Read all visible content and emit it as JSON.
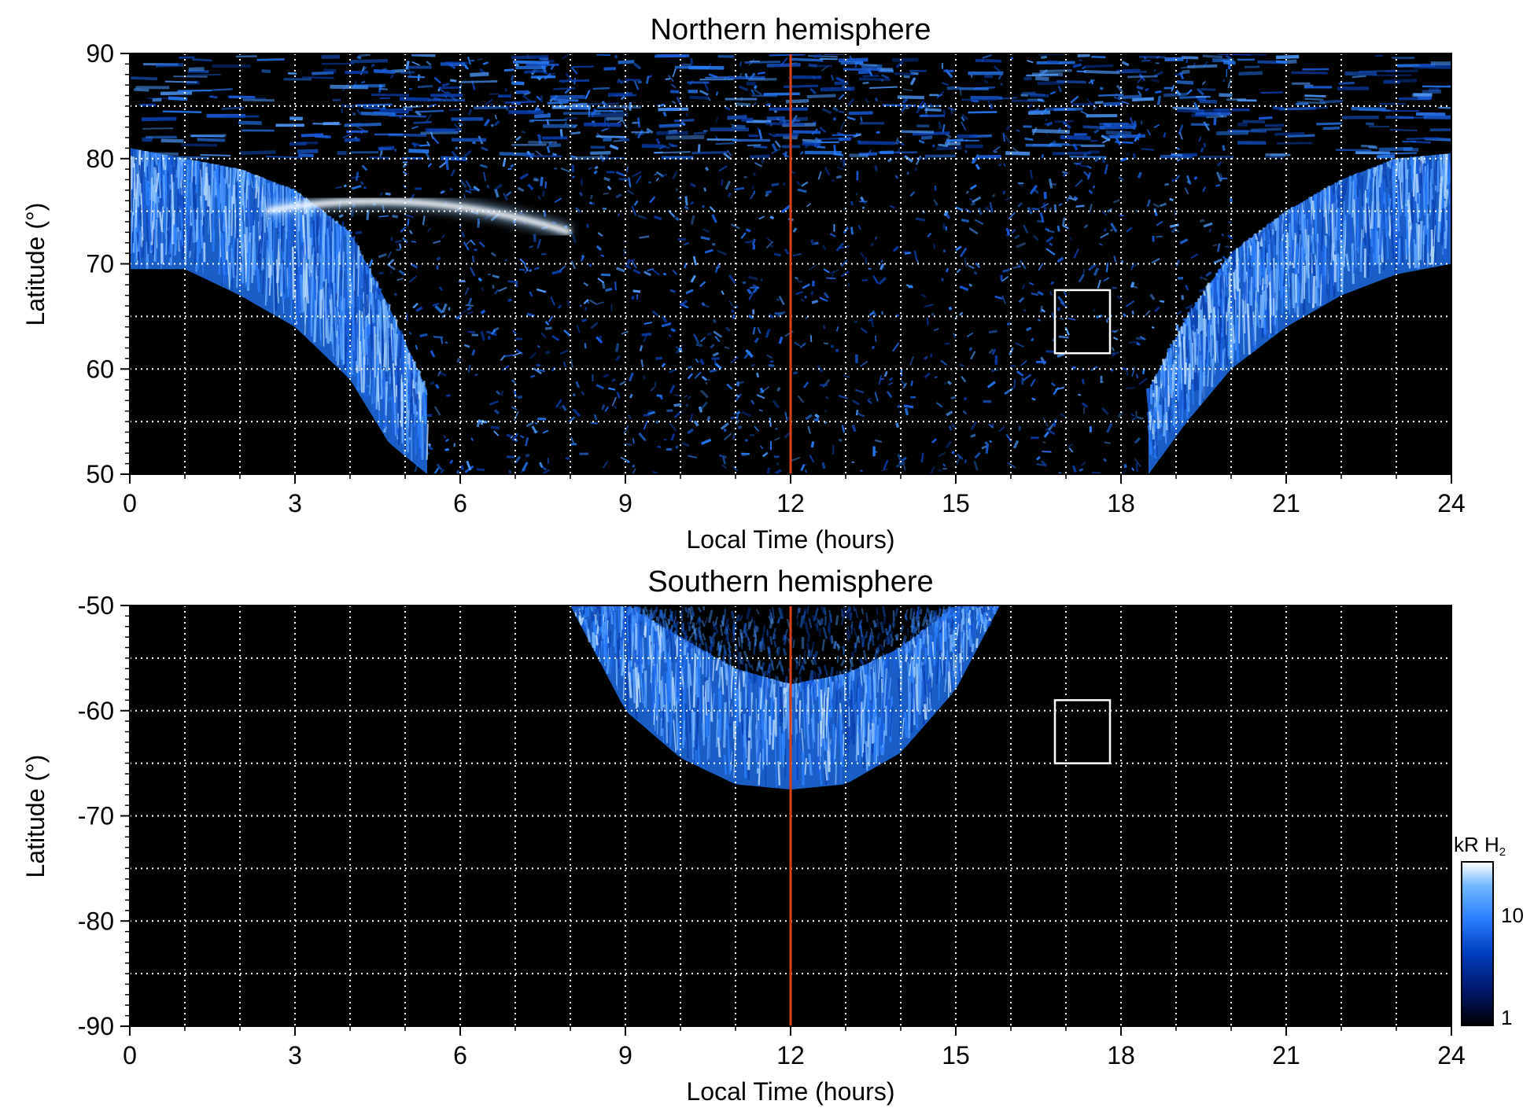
{
  "chart_data": [
    {
      "type": "heatmap",
      "title": "Northern hemisphere",
      "xlabel": "Local Time (hours)",
      "ylabel": "Latitude (°)",
      "xlim": [
        0,
        24
      ],
      "ylim": [
        50,
        90
      ],
      "x_ticks": [
        "0",
        "3",
        "6",
        "9",
        "12",
        "15",
        "18",
        "21",
        "24"
      ],
      "y_ticks": [
        "50",
        "60",
        "70",
        "80",
        "90"
      ],
      "grid": "dotted, every 1 hour and every 5 degrees",
      "reference_line": {
        "x": 12,
        "color": "#d9401a"
      },
      "box": {
        "x": [
          16.8,
          17.8
        ],
        "lat": [
          61.5,
          67.5
        ]
      },
      "auroral_oval": [
        {
          "lt": 0,
          "lat_low": 69.5,
          "lat_high": 81
        },
        {
          "lt": 1,
          "lat_low": 69.5,
          "lat_high": 80
        },
        {
          "lt": 2,
          "lat_low": 67,
          "lat_high": 79
        },
        {
          "lt": 3,
          "lat_low": 64,
          "lat_high": 77
        },
        {
          "lt": 4,
          "lat_low": 59,
          "lat_high": 73
        },
        {
          "lt": 4.7,
          "lat_low": 53,
          "lat_high": 66
        },
        {
          "lt": 5.4,
          "lat_low": 50,
          "lat_high": 58
        },
        {
          "lt": 18.5,
          "lat_low": 50,
          "lat_high": 58
        },
        {
          "lt": 19.2,
          "lat_low": 55,
          "lat_high": 65
        },
        {
          "lt": 20,
          "lat_low": 60,
          "lat_high": 71
        },
        {
          "lt": 21,
          "lat_low": 64,
          "lat_high": 75
        },
        {
          "lt": 22,
          "lat_low": 67,
          "lat_high": 78
        },
        {
          "lt": 23,
          "lat_low": 69,
          "lat_high": 80
        },
        {
          "lt": 24,
          "lat_low": 70,
          "lat_high": 80.5
        }
      ],
      "bright_arc": {
        "lt": [
          2.5,
          8
        ],
        "lat": [
          75.5,
          73
        ]
      }
    },
    {
      "type": "heatmap",
      "title": "Southern hemisphere",
      "xlabel": "Local Time (hours)",
      "ylabel": "Latitude (°)",
      "xlim": [
        0,
        24
      ],
      "ylim": [
        -90,
        -50
      ],
      "x_ticks": [
        "0",
        "3",
        "6",
        "9",
        "12",
        "15",
        "18",
        "21",
        "24"
      ],
      "y_ticks": [
        "-50",
        "-60",
        "-70",
        "-80",
        "-90"
      ],
      "grid": "dotted, every 1 hour and every 5 degrees",
      "reference_line": {
        "x": 12,
        "color": "#d9401a"
      },
      "box": {
        "x": [
          16.8,
          17.8
        ],
        "lat": [
          -59,
          -65
        ]
      },
      "auroral_oval": [
        {
          "lt": 8,
          "lat_inner": -50,
          "lat_outer": -50
        },
        {
          "lt": 9,
          "lat_inner": -50,
          "lat_outer": -60
        },
        {
          "lt": 10,
          "lat_inner": -53,
          "lat_outer": -64.5
        },
        {
          "lt": 11,
          "lat_inner": -56,
          "lat_outer": -67
        },
        {
          "lt": 12,
          "lat_inner": -57.5,
          "lat_outer": -67.5
        },
        {
          "lt": 13,
          "lat_inner": -56.5,
          "lat_outer": -67
        },
        {
          "lt": 14,
          "lat_inner": -54,
          "lat_outer": -64
        },
        {
          "lt": 15,
          "lat_inner": -50,
          "lat_outer": -58
        },
        {
          "lt": 15.8,
          "lat_inner": -50,
          "lat_outer": -50
        }
      ]
    }
  ],
  "colorbar": {
    "label": "kR H",
    "label_subscript": "2",
    "ticks": [
      "10",
      "1"
    ],
    "scale": "log",
    "range": [
      1,
      30
    ],
    "colors": [
      "#000000",
      "#001466",
      "#0040c0",
      "#2a7fff",
      "#6fb5ff",
      "#ffffff"
    ]
  }
}
